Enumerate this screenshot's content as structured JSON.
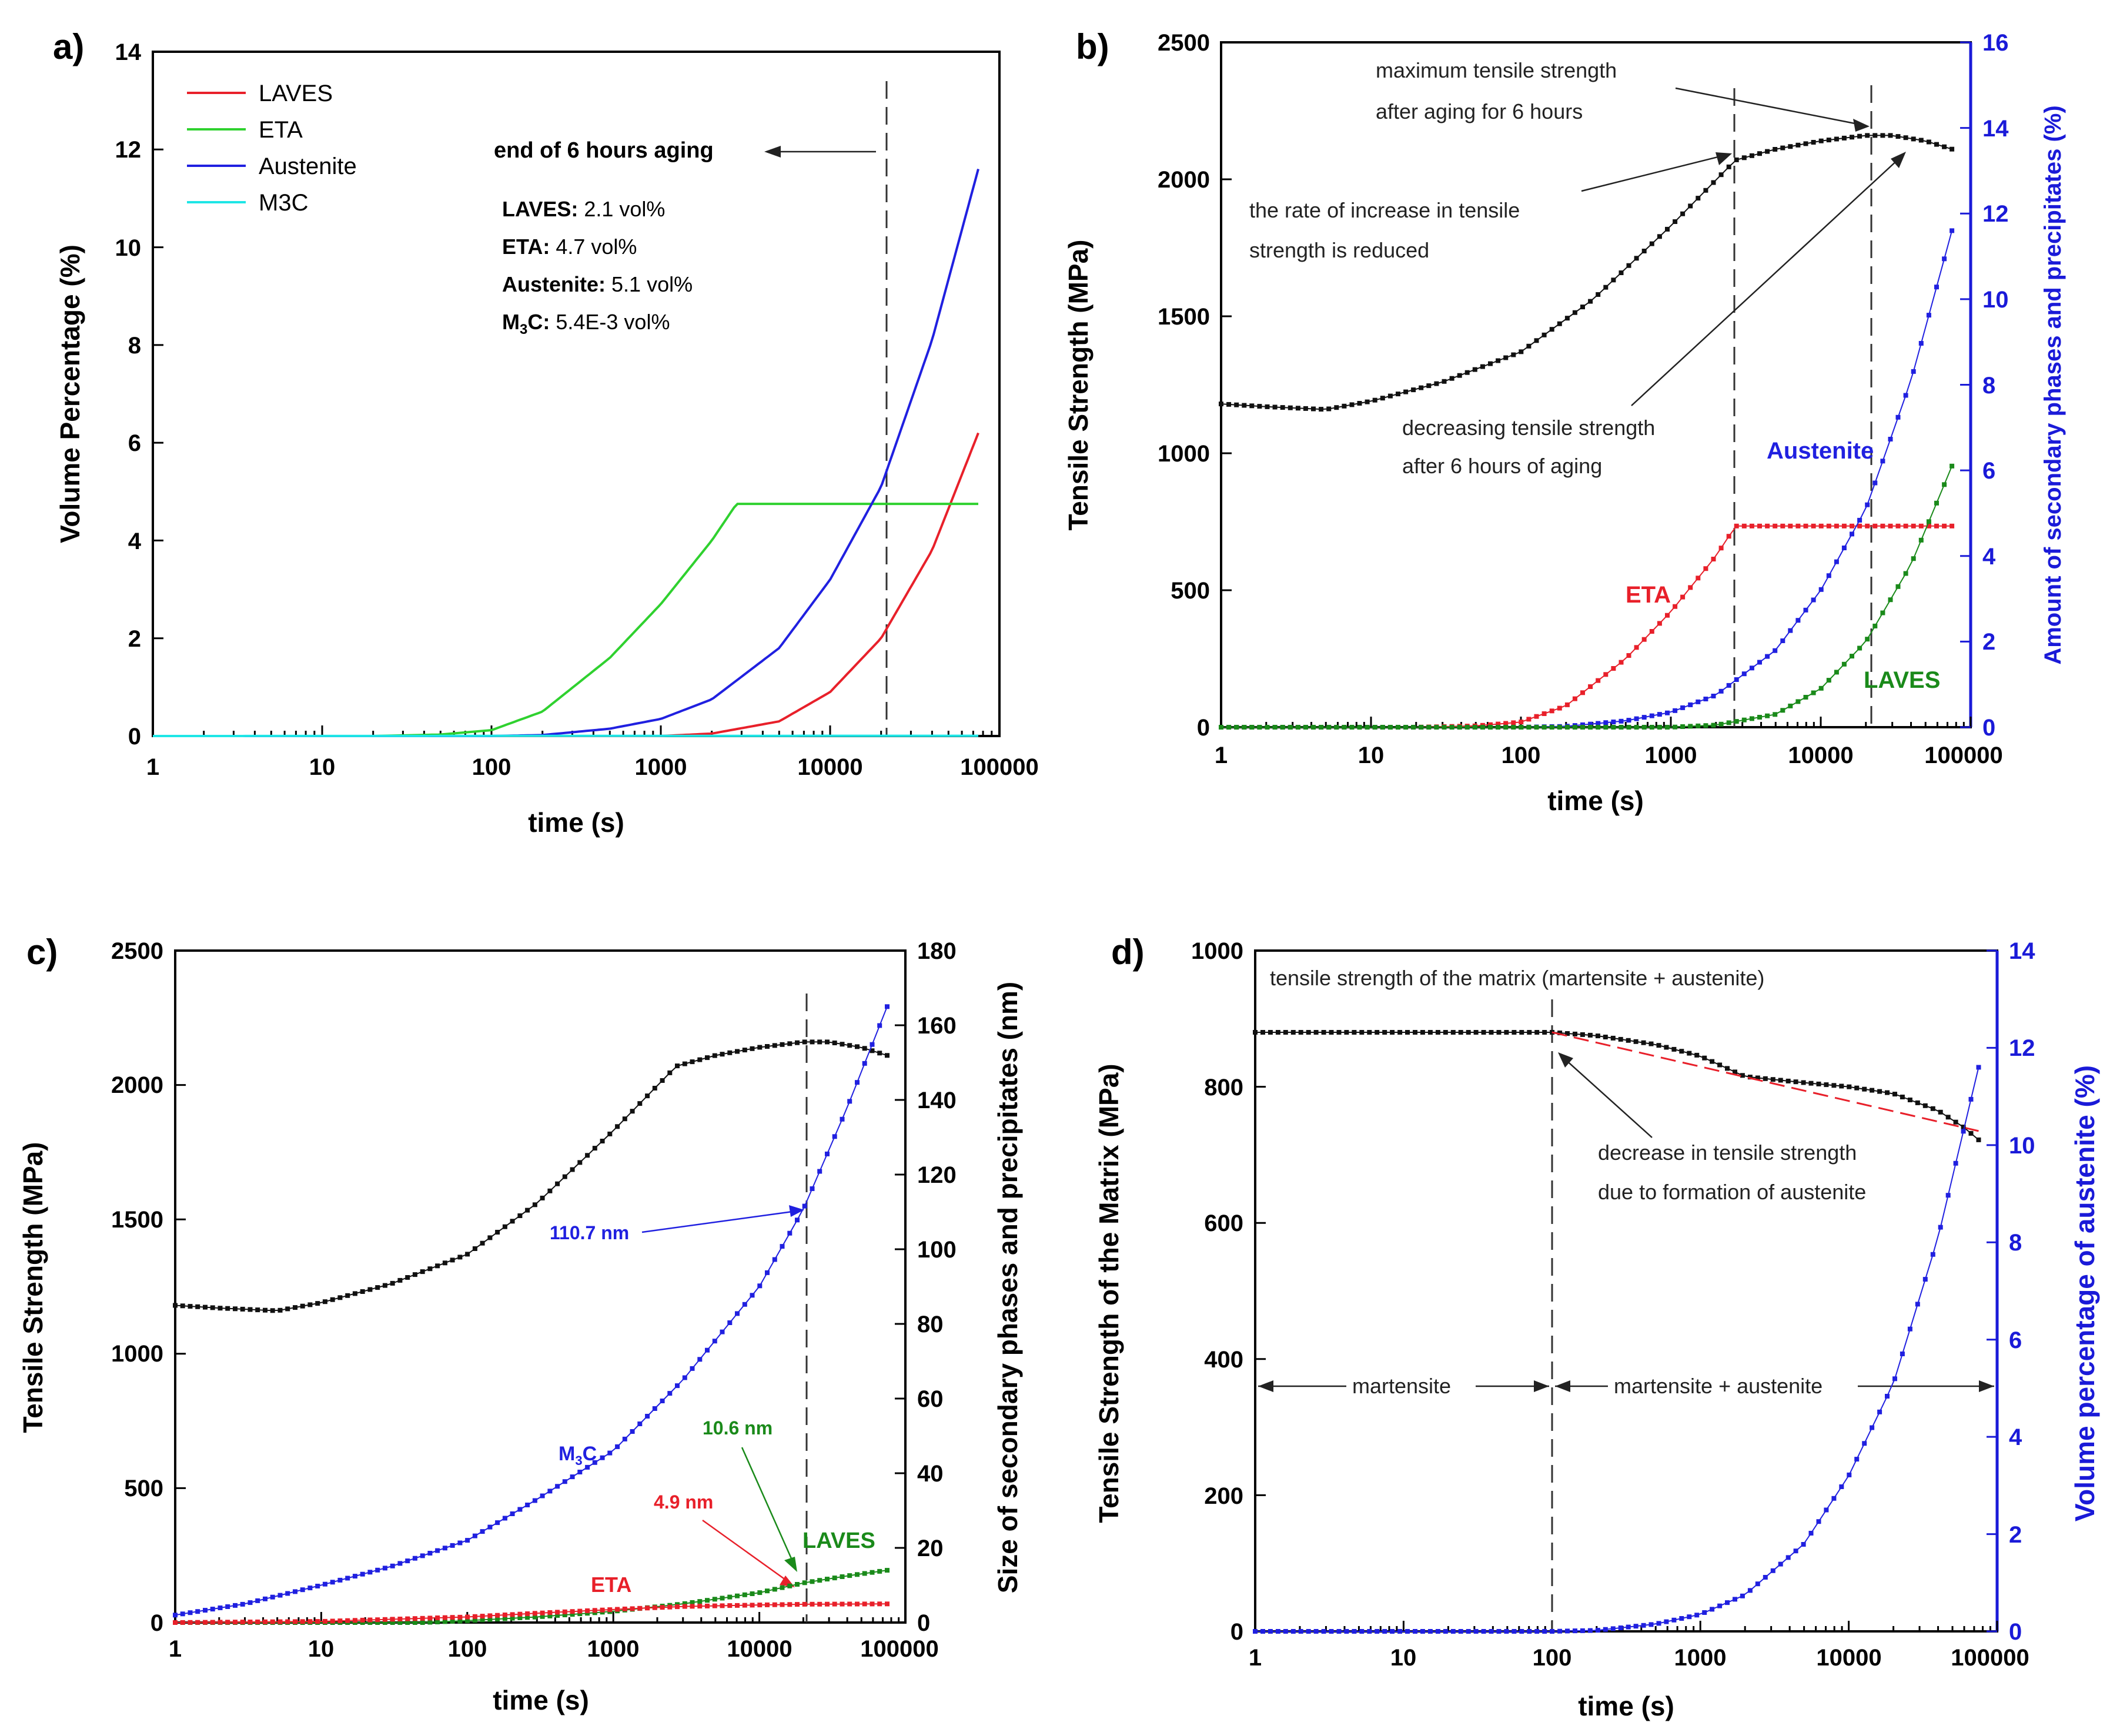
{
  "chart_data": [
    {
      "type": "line",
      "panel": "a)",
      "xlabel": "time (s)",
      "ylabel": "Volume Percentage (%)",
      "xscale": "log",
      "xlim": [
        1,
        100000
      ],
      "ylim": [
        0,
        14
      ],
      "xticks": [
        "1",
        "10",
        "100",
        "1000",
        "10000",
        "100000"
      ],
      "yticks": [
        "0",
        "2",
        "4",
        "6",
        "8",
        "10",
        "12",
        "14"
      ],
      "legend_position": "top-left",
      "series": [
        {
          "name": "LAVES",
          "color": "#e8202a",
          "x": [
            1,
            1000,
            2000,
            5000,
            10000,
            20000,
            40000,
            75000
          ],
          "y": [
            0,
            0,
            0.05,
            0.3,
            0.9,
            2.0,
            3.8,
            6.2
          ]
        },
        {
          "name": "ETA",
          "color": "#2fd12f",
          "x": [
            1,
            20,
            50,
            100,
            200,
            500,
            1000,
            2000,
            2800,
            75000
          ],
          "y": [
            0,
            0,
            0.03,
            0.12,
            0.5,
            1.6,
            2.7,
            4.0,
            4.75,
            4.75
          ]
        },
        {
          "name": "Austenite",
          "color": "#2020e0",
          "x": [
            1,
            100,
            200,
            500,
            1000,
            2000,
            5000,
            10000,
            20000,
            40000,
            75000
          ],
          "y": [
            0,
            0,
            0.02,
            0.15,
            0.35,
            0.75,
            1.8,
            3.2,
            5.1,
            8.1,
            11.6
          ]
        },
        {
          "name": "M3C",
          "color": "#1ee6e6",
          "x": [
            1,
            75000
          ],
          "y": [
            0,
            0.0054
          ]
        }
      ],
      "annotations": {
        "end_label": "end of 6 hours aging",
        "vline_x": 21600,
        "lines": [
          {
            "bold": "LAVES:",
            "rest": " 2.1 vol%"
          },
          {
            "bold": "ETA:",
            "rest": " 4.7 vol%"
          },
          {
            "bold": "Austenite:",
            "rest": " 5.1 vol%"
          },
          {
            "bold": "M",
            "sub": "3",
            "bold2": "C:",
            "rest": " 5.4E-3 vol%"
          }
        ]
      }
    },
    {
      "type": "line",
      "panel": "b)",
      "xlabel": "time (s)",
      "ylabel": "Tensile Strength (MPa)",
      "y2label": "Amount of secondary phases and precipitates (%)",
      "xscale": "log",
      "xlim": [
        1,
        100000
      ],
      "ylim": [
        0,
        2500
      ],
      "y2lim": [
        0,
        16
      ],
      "xticks": [
        "1",
        "10",
        "100",
        "1000",
        "10000",
        "100000"
      ],
      "yticks": [
        "0",
        "500",
        "1000",
        "1500",
        "2000",
        "2500"
      ],
      "y2ticks": [
        "0",
        "2",
        "4",
        "6",
        "8",
        "10",
        "12",
        "14",
        "16"
      ],
      "series": [
        {
          "name": "Tensile Strength",
          "axis": "left",
          "color": "#111111",
          "x": [
            1,
            2,
            5,
            10,
            30,
            100,
            300,
            1000,
            2700,
            5000,
            10000,
            20000,
            30000,
            50000,
            75000
          ],
          "y": [
            1180,
            1170,
            1160,
            1190,
            1260,
            1370,
            1560,
            1830,
            2070,
            2110,
            2140,
            2160,
            2160,
            2140,
            2110
          ]
        },
        {
          "name": "ETA",
          "axis": "right",
          "color": "#e8202a",
          "x": [
            1,
            20,
            50,
            100,
            200,
            500,
            1000,
            2000,
            2700,
            75000
          ],
          "y": [
            0,
            0,
            0.03,
            0.12,
            0.5,
            1.6,
            2.7,
            4.0,
            4.7,
            4.7
          ]
        },
        {
          "name": "Austenite",
          "axis": "right",
          "color": "#2020e0",
          "x": [
            1,
            100,
            200,
            500,
            1000,
            2000,
            5000,
            10000,
            20000,
            40000,
            75000
          ],
          "y": [
            0,
            0,
            0.02,
            0.15,
            0.35,
            0.75,
            1.8,
            3.2,
            5.1,
            8.1,
            11.6
          ]
        },
        {
          "name": "LAVES",
          "axis": "right",
          "color": "#1a8a1a",
          "x": [
            1,
            1000,
            2000,
            5000,
            10000,
            20000,
            40000,
            75000
          ],
          "y": [
            0,
            0,
            0.05,
            0.3,
            0.9,
            2.0,
            3.8,
            6.1
          ]
        }
      ],
      "vlines_x": [
        2700,
        21600
      ],
      "annotations": {
        "note1": [
          "maximum tensile strength",
          "after aging for 6 hours"
        ],
        "note2": [
          "the rate of increase in tensile",
          "strength is reduced"
        ],
        "note3": [
          "decreasing tensile strength",
          "after 6 hours of aging"
        ],
        "label_austenite": "Austenite",
        "label_eta": "ETA",
        "label_laves": "LAVES"
      }
    },
    {
      "type": "line",
      "panel": "c)",
      "xlabel": "time (s)",
      "ylabel": "Tensile Strength (MPa)",
      "y2label": "Size of secondary phases and precipitates (nm)",
      "xscale": "log",
      "xlim": [
        1,
        100000
      ],
      "ylim": [
        0,
        2500
      ],
      "y2lim": [
        0,
        180
      ],
      "xticks": [
        "1",
        "10",
        "100",
        "1000",
        "10000",
        "100000"
      ],
      "yticks": [
        "0",
        "500",
        "1000",
        "1500",
        "2000",
        "2500"
      ],
      "y2ticks": [
        "0",
        "20",
        "40",
        "60",
        "80",
        "100",
        "120",
        "140",
        "160",
        "180"
      ],
      "series": [
        {
          "name": "Tensile Strength",
          "axis": "left",
          "color": "#111111",
          "x": [
            1,
            2,
            5,
            10,
            30,
            100,
            300,
            1000,
            2700,
            5000,
            10000,
            20000,
            30000,
            50000,
            75000
          ],
          "y": [
            1180,
            1170,
            1160,
            1190,
            1260,
            1370,
            1560,
            1830,
            2070,
            2110,
            2140,
            2160,
            2160,
            2140,
            2110
          ]
        },
        {
          "name": "M3C",
          "axis": "right",
          "color": "#2020e0",
          "x": [
            1,
            3,
            10,
            30,
            100,
            300,
            1000,
            3000,
            10000,
            20000,
            40000,
            75000
          ],
          "y": [
            2,
            5,
            10,
            15,
            22,
            33,
            46,
            65,
            90,
            110.7,
            138,
            165
          ]
        },
        {
          "name": "LAVES",
          "axis": "right",
          "color": "#1a8a1a",
          "x": [
            1,
            50,
            100,
            300,
            1000,
            3000,
            10000,
            20000,
            40000,
            75000
          ],
          "y": [
            0,
            0,
            0.5,
            1.5,
            3.0,
            5.0,
            8.0,
            10.6,
            12.5,
            14
          ]
        },
        {
          "name": "ETA",
          "axis": "right",
          "color": "#e8202a",
          "x": [
            1,
            10,
            100,
            300,
            1000,
            3000,
            10000,
            20000,
            75000
          ],
          "y": [
            0,
            0.3,
            1.5,
            2.5,
            3.5,
            4.3,
            4.7,
            4.9,
            5.0
          ]
        }
      ],
      "vline_x": 21600,
      "annotations": {
        "size_austenite": "110.7 nm",
        "size_laves": "10.6 nm",
        "size_eta": "4.9 nm",
        "label_m3c_main": "M",
        "label_m3c_sub": "3",
        "label_m3c_end": "C",
        "label_laves": "LAVES",
        "label_eta": "ETA"
      }
    },
    {
      "type": "line",
      "panel": "d)",
      "xlabel": "time (s)",
      "ylabel": "Tensile Strength of the Matrix (MPa)",
      "y2label": "Volume percentage of austenite (%)",
      "xscale": "log",
      "xlim": [
        1,
        100000
      ],
      "ylim": [
        0,
        1000
      ],
      "y2lim": [
        0,
        14
      ],
      "xticks": [
        "1",
        "10",
        "100",
        "1000",
        "10000",
        "100000"
      ],
      "yticks": [
        "0",
        "200",
        "400",
        "600",
        "800",
        "1000"
      ],
      "y2ticks": [
        "0",
        "2",
        "4",
        "6",
        "8",
        "10",
        "12",
        "14"
      ],
      "series": [
        {
          "name": "Matrix Tensile Strength",
          "axis": "left",
          "color": "#111111",
          "x": [
            1,
            10,
            100,
            200,
            500,
            1000,
            2000,
            5000,
            10000,
            20000,
            40000,
            60000,
            75000
          ],
          "y": [
            880,
            880,
            880,
            875,
            862,
            845,
            815,
            806,
            800,
            790,
            765,
            740,
            722
          ]
        },
        {
          "name": "Trend",
          "axis": "left",
          "color": "#e8202a",
          "x": [
            100,
            75000
          ],
          "y": [
            880,
            735
          ]
        },
        {
          "name": "Austenite",
          "axis": "right",
          "color": "#2020e0",
          "x": [
            1,
            100,
            200,
            500,
            1000,
            2000,
            5000,
            10000,
            20000,
            40000,
            75000
          ],
          "y": [
            0,
            0,
            0.02,
            0.15,
            0.35,
            0.75,
            1.8,
            3.2,
            5.1,
            8.1,
            11.6
          ]
        }
      ],
      "vline_x": 100,
      "annotations": {
        "title_note": "tensile strength of the matrix (martensite + austenite)",
        "decrease_note": [
          "decrease in tensile strength",
          "due to formation of austenite"
        ],
        "region_left": "martensite",
        "region_right": "martensite + austenite"
      }
    }
  ]
}
